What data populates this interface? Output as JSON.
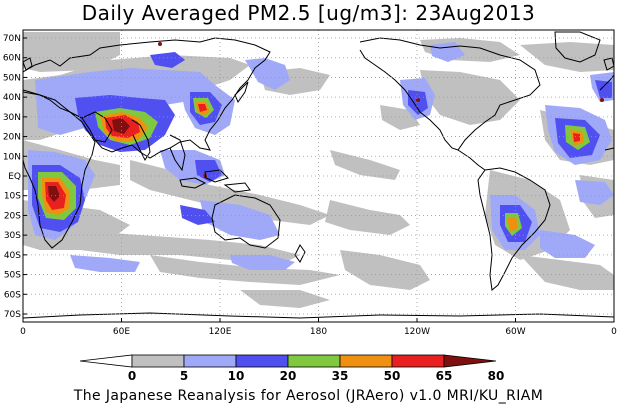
{
  "title": "Daily Averaged PM2.5 [ug/m3]: 23Aug2013",
  "credit": "The Japanese Reanalysis for Aerosol (JRAero) v1.0 MRI/KU_RIAM",
  "map": {
    "lat_labels": [
      "70N",
      "60N",
      "50N",
      "40N",
      "30N",
      "20N",
      "10N",
      "EQ",
      "10S",
      "20S",
      "30S",
      "40S",
      "50S",
      "60S",
      "70S"
    ],
    "lon_labels": [
      "0",
      "60E",
      "120E",
      "180",
      "120W",
      "60W",
      "0"
    ],
    "grid": "dotted"
  },
  "colorbar": {
    "levels": [
      "0",
      "5",
      "10",
      "20",
      "35",
      "50",
      "65",
      "80"
    ],
    "colors": [
      "#ffffff",
      "#c0c0c0",
      "#a0a8f8",
      "#5050f0",
      "#80c840",
      "#f09010",
      "#e82020",
      "#801010"
    ]
  },
  "colors": {
    "land_outline": "#000000",
    "grid": "#999999"
  }
}
